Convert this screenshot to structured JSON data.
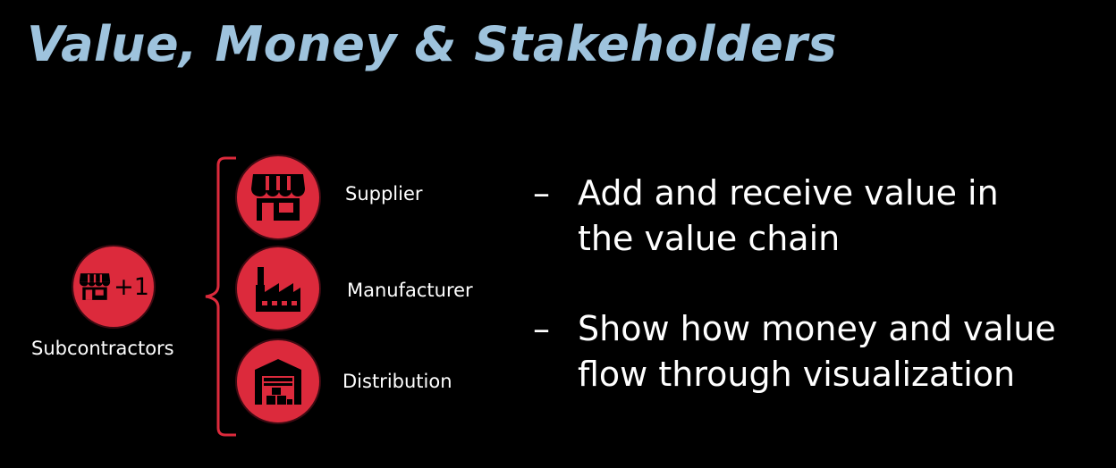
{
  "slide": {
    "title": "Value, Money & Stakeholders",
    "title_color": "#9ec3dd",
    "accent_color": "#dc2a3c"
  },
  "subcontractors": {
    "icon": "storefront-icon",
    "badge": "+1",
    "label": "Subcontractors"
  },
  "stakeholders": [
    {
      "label": "Supplier",
      "icon": "storefront-icon"
    },
    {
      "label": "Manufacturer",
      "icon": "factory-icon"
    },
    {
      "label": "Distribution",
      "icon": "warehouse-icon"
    }
  ],
  "bullets": [
    {
      "dash": "–",
      "line1": "Add and receive value in",
      "line2": "the value chain"
    },
    {
      "dash": "–",
      "line1": "Show how money and value",
      "line2": "flow through visualization"
    }
  ]
}
